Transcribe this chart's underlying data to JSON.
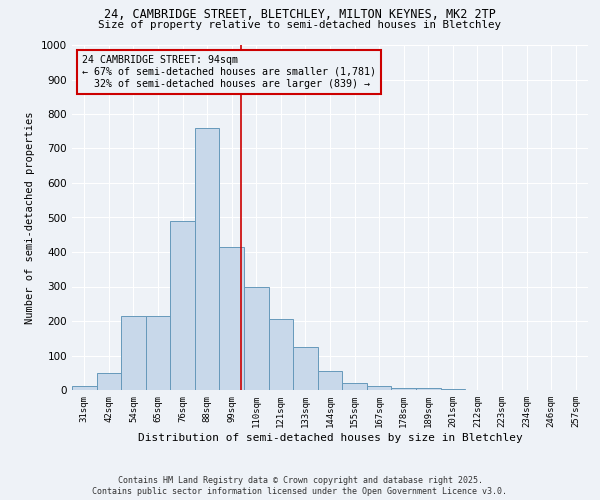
{
  "title1": "24, CAMBRIDGE STREET, BLETCHLEY, MILTON KEYNES, MK2 2TP",
  "title2": "Size of property relative to semi-detached houses in Bletchley",
  "xlabel": "Distribution of semi-detached houses by size in Bletchley",
  "ylabel": "Number of semi-detached properties",
  "bin_labels": [
    "31sqm",
    "42sqm",
    "54sqm",
    "65sqm",
    "76sqm",
    "88sqm",
    "99sqm",
    "110sqm",
    "121sqm",
    "133sqm",
    "144sqm",
    "155sqm",
    "167sqm",
    "178sqm",
    "189sqm",
    "201sqm",
    "212sqm",
    "223sqm",
    "234sqm",
    "246sqm",
    "257sqm"
  ],
  "bin_values": [
    13,
    50,
    215,
    215,
    490,
    760,
    415,
    300,
    205,
    125,
    55,
    20,
    12,
    7,
    5,
    3,
    1,
    1,
    0,
    0,
    0
  ],
  "bar_color": "#c8d8ea",
  "bar_edge_color": "#6699bb",
  "property_label": "24 CAMBRIDGE STREET: 94sqm",
  "pct_smaller": 67,
  "n_smaller": 1781,
  "pct_larger": 32,
  "n_larger": 839,
  "vline_color": "#cc0000",
  "vline_x_index": 6.36,
  "annotation_box_color": "#cc0000",
  "ylim": [
    0,
    1000
  ],
  "yticks": [
    0,
    100,
    200,
    300,
    400,
    500,
    600,
    700,
    800,
    900,
    1000
  ],
  "footnote1": "Contains HM Land Registry data © Crown copyright and database right 2025.",
  "footnote2": "Contains public sector information licensed under the Open Government Licence v3.0.",
  "bg_color": "#eef2f7",
  "grid_color": "#ffffff"
}
